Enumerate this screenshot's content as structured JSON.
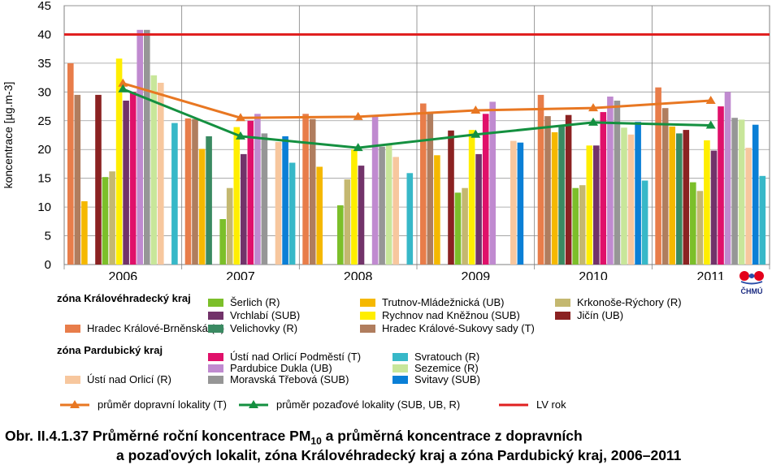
{
  "chart_data": {
    "type": "bar",
    "ylabel": "koncentrace [µg.m-3]",
    "ylim": [
      0,
      45
    ],
    "yticks": [
      0,
      5,
      10,
      15,
      20,
      25,
      30,
      35,
      40,
      45
    ],
    "categories": [
      "2006",
      "2007",
      "2008",
      "2009",
      "2010",
      "2011"
    ],
    "grid": true,
    "limit_line": {
      "name": "LV rok",
      "value": 40,
      "color": "#e02020"
    },
    "series": [
      {
        "name": "Hradec Králové-Brněnská (T)",
        "color": "#e87d4a",
        "values": [
          35.0,
          25.4,
          26.2,
          28.0,
          29.5,
          30.8
        ]
      },
      {
        "name": "Hradec Králové-Sukovy sady (T)",
        "color": "#b07d5e",
        "values": [
          29.5,
          25.3,
          25.3,
          26.3,
          25.8,
          27.2
        ]
      },
      {
        "name": "Trutnov-Mládežnická (UB)",
        "color": "#f5b800",
        "values": [
          11.0,
          20.1,
          17.0,
          19.0,
          23.0,
          24.0
        ]
      },
      {
        "name": "Velichovky (R)",
        "color": "#3a8a62",
        "values": [
          null,
          22.3,
          null,
          null,
          24.0,
          22.8
        ]
      },
      {
        "name": "Jičín (UB)",
        "color": "#8b2222",
        "values": [
          29.5,
          null,
          null,
          23.3,
          26.0,
          23.4
        ]
      },
      {
        "name": "Šerlich (R)",
        "color": "#7cbf2a",
        "values": [
          15.2,
          7.9,
          10.3,
          12.5,
          13.3,
          14.3
        ]
      },
      {
        "name": "Krkonoše-Rýchory (R)",
        "color": "#c4b870",
        "values": [
          16.2,
          13.3,
          14.8,
          13.3,
          13.8,
          12.8
        ]
      },
      {
        "name": "Rychnov nad Kněžnou (SUB)",
        "color": "#ffee00",
        "values": [
          35.8,
          23.9,
          20.0,
          23.4,
          20.7,
          21.6
        ]
      },
      {
        "name": "Vrchlabí (SUB)",
        "color": "#72336a",
        "values": [
          28.5,
          19.2,
          17.2,
          19.2,
          20.7,
          19.8
        ]
      },
      {
        "name": "Ústí nad Orlicí Podměstí (T)",
        "color": "#e0106a",
        "values": [
          30.0,
          25.0,
          null,
          26.2,
          26.5,
          27.5
        ]
      },
      {
        "name": "Pardubice Dukla (UB)",
        "color": "#c08ad0",
        "values": [
          40.8,
          26.2,
          25.8,
          28.3,
          29.2,
          30.0
        ]
      },
      {
        "name": "Moravská Třebová (SUB)",
        "color": "#969696",
        "values": [
          40.8,
          22.8,
          20.5,
          null,
          28.5,
          25.5
        ]
      },
      {
        "name": "Sezemice (R)",
        "color": "#c8e69a",
        "values": [
          32.9,
          null,
          20.8,
          null,
          23.8,
          25.2
        ]
      },
      {
        "name": "Ústí nad Orlicí (R)",
        "color": "#f7c79e",
        "values": [
          31.6,
          21.3,
          18.7,
          21.5,
          22.6,
          20.3
        ]
      },
      {
        "name": "Svitavy (SUB)",
        "color": "#0a7fd6",
        "values": [
          null,
          22.3,
          null,
          21.2,
          24.8,
          24.3
        ]
      },
      {
        "name": "Svratouch (R)",
        "color": "#37b8c8",
        "values": [
          24.6,
          17.7,
          15.9,
          null,
          14.6,
          15.4
        ]
      }
    ],
    "lines": [
      {
        "name": "průměr dopravní lokality (T)",
        "color": "#e87722",
        "marker": "triangle",
        "values": [
          31.5,
          25.5,
          25.7,
          26.8,
          27.2,
          28.5
        ]
      },
      {
        "name": "průměr pozaďové lokality  (SUB, UB, R)",
        "color": "#149040",
        "marker": "triangle",
        "values": [
          30.5,
          22.3,
          20.3,
          22.6,
          24.7,
          24.2
        ]
      }
    ]
  },
  "legend": {
    "zone1_title": "zóna Královéhradecký kraj",
    "zone2_title": "zóna Pardubický kraj",
    "lv_label": "LV rok"
  },
  "caption": {
    "prefix": "Obr. II.4.1.37  Průměrné roční koncentrace PM",
    "subscript": "10",
    "line1_suffix": " a průměrná koncentrace z dopravních",
    "line2": "a pozaďových lokalit, zóna Královéhradecký kraj a zóna Pardubický kraj, 2006–2011"
  },
  "logo_text": "ČHMÚ"
}
